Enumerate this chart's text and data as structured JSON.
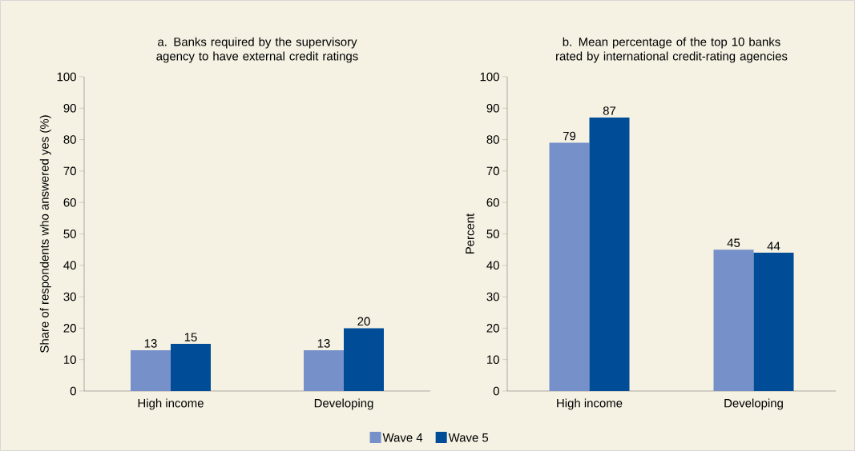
{
  "chart_data": [
    {
      "type": "bar",
      "title": "a. Banks required by the supervisory agency to have external credit ratings",
      "ylabel": "Share of respondents who answered yes (%)",
      "categories": [
        "High income",
        "Developing"
      ],
      "ylim": [
        0,
        100
      ],
      "yticks": [
        0,
        10,
        20,
        30,
        40,
        50,
        60,
        70,
        80,
        90,
        100
      ],
      "data_labels": true,
      "series": [
        {
          "color": "#7690c9",
          "values": [
            13,
            13
          ]
        },
        {
          "color": "#004c97",
          "values": [
            15,
            20
          ]
        }
      ]
    },
    {
      "type": "bar",
      "title": "b. Mean percentage of the top 10 banks rated by international credit-rating agencies",
      "ylabel": "Percent",
      "categories": [
        "High income",
        "Developing"
      ],
      "ylim": [
        0,
        100
      ],
      "yticks": [
        0,
        10,
        20,
        30,
        40,
        50,
        60,
        70,
        80,
        90,
        100
      ],
      "data_labels": true,
      "legend": "bottom",
      "series": [
        {
          "name": "Wave 4",
          "color": "#7690c9",
          "values": [
            79,
            45
          ]
        },
        {
          "name": "Wave 5",
          "color": "#004c97",
          "values": [
            87,
            44
          ]
        }
      ]
    }
  ]
}
